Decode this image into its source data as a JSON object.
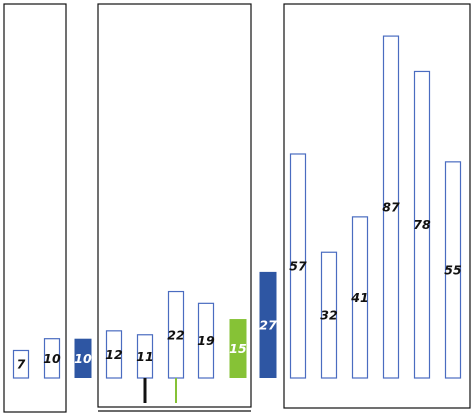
{
  "colors": {
    "outline_bar": "#4a6cc0",
    "filled_blue": "#2e56a3",
    "filled_green": "#86c236",
    "stem_black": "#111111",
    "stem_green": "#86c236",
    "frame": "#111111",
    "label_dark": "#111111",
    "label_light": "#ffffff"
  },
  "chart_data": {
    "type": "bar",
    "title": "",
    "groups": [
      {
        "name": "",
        "values": [
          7,
          10
        ]
      },
      {
        "name": "",
        "values": [
          10
        ]
      },
      {
        "name": "",
        "values": [
          12,
          11,
          22,
          19,
          15
        ]
      },
      {
        "name": "",
        "values": [
          27
        ]
      },
      {
        "name": "",
        "values": [
          57,
          32,
          41,
          87,
          78,
          55
        ]
      }
    ],
    "bars": [
      {
        "value": 7,
        "label": "7",
        "style": "outline"
      },
      {
        "value": 10,
        "label": "10",
        "style": "outline"
      },
      {
        "value": 10,
        "label": "10",
        "style": "filled_blue"
      },
      {
        "value": 12,
        "label": "12",
        "style": "outline"
      },
      {
        "value": 11,
        "label": "11",
        "style": "outline",
        "stem": "black"
      },
      {
        "value": 22,
        "label": "22",
        "style": "outline",
        "stem": "green"
      },
      {
        "value": 19,
        "label": "19",
        "style": "outline"
      },
      {
        "value": 15,
        "label": "15",
        "style": "filled_green"
      },
      {
        "value": 27,
        "label": "27",
        "style": "filled_blue"
      },
      {
        "value": 57,
        "label": "57",
        "style": "outline"
      },
      {
        "value": 32,
        "label": "32",
        "style": "outline"
      },
      {
        "value": 41,
        "label": "41",
        "style": "outline"
      },
      {
        "value": 87,
        "label": "87",
        "style": "outline"
      },
      {
        "value": 78,
        "label": "78",
        "style": "outline"
      },
      {
        "value": 55,
        "label": "55",
        "style": "outline"
      }
    ]
  }
}
